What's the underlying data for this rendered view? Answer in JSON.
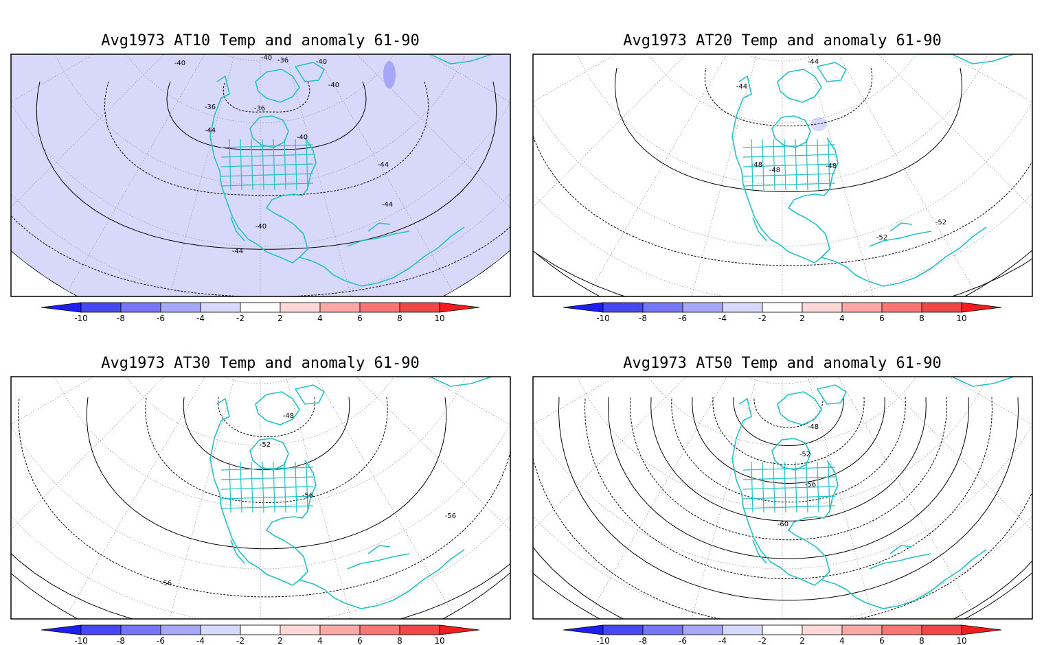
{
  "colors": {
    "coast": "#22c2c2",
    "neg": [
      "#1e1ef0",
      "#4747f3",
      "#7676f5",
      "#a7a7f8",
      "#d8d8fb"
    ],
    "pos": [
      "#fdd8d8",
      "#fba7a7",
      "#f77676",
      "#f24747",
      "#f01e1e"
    ]
  },
  "colorbar": {
    "ticks": [
      "-10",
      "-8",
      "-6",
      "-4",
      "-2",
      "2",
      "4",
      "6",
      "8",
      "10"
    ]
  },
  "panels": [
    {
      "id": "at10",
      "title": "Avg1973 AT10 Temp and anomaly 61-90",
      "contour_labels": [
        "-40",
        "-40",
        "-36",
        "-40",
        "-40",
        "-36",
        "-36",
        "-44",
        "-40",
        "-44",
        "-44",
        "-40",
        "-44"
      ],
      "anomaly_shading": "widespread -2 to -4 bands, small -6 patch"
    },
    {
      "id": "at20",
      "title": "Avg1973 AT20 Temp and anomaly 61-90",
      "contour_labels": [
        "-44",
        "-44",
        "-48",
        "-48",
        "-48",
        "-52",
        "-52"
      ],
      "anomaly_shading": "small -2 patch"
    },
    {
      "id": "at30",
      "title": "Avg1973 AT30 Temp and anomaly 61-90",
      "contour_labels": [
        "-48",
        "-52",
        "-56",
        "-56",
        "-56"
      ],
      "anomaly_shading": "none"
    },
    {
      "id": "at50",
      "title": "Avg1973 AT50 Temp and anomaly 61-90",
      "contour_labels": [
        "-48",
        "-52",
        "-56",
        "-60"
      ],
      "anomaly_shading": "none"
    }
  ]
}
